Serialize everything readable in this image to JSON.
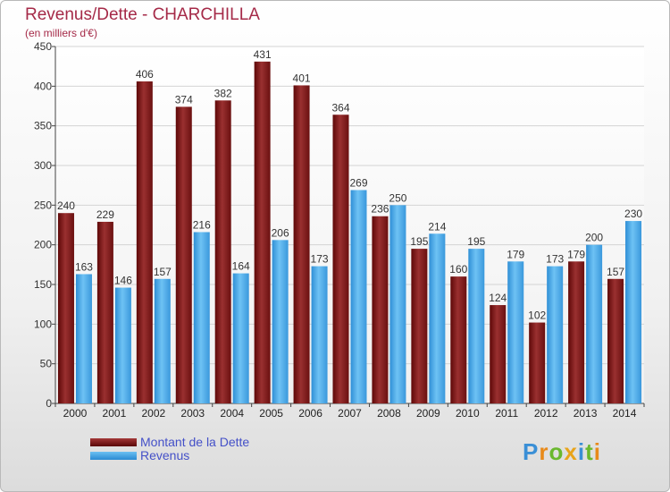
{
  "header": {
    "title": "Revenus/Dette - CHARCHILLA",
    "subtitle": "(en milliers d'€)"
  },
  "chart_data": {
    "type": "bar",
    "title": "Revenus/Dette - CHARCHILLA",
    "ylabel": "(en milliers d'€)",
    "xlabel": "",
    "categories": [
      "2000",
      "2001",
      "2002",
      "2003",
      "2004",
      "2005",
      "2006",
      "2007",
      "2008",
      "2009",
      "2010",
      "2011",
      "2012",
      "2013",
      "2014"
    ],
    "series": [
      {
        "name": "Montant de la Dette",
        "color": "#7a1a1a",
        "values": [
          240,
          229,
          406,
          374,
          382,
          431,
          401,
          364,
          236,
          195,
          160,
          124,
          102,
          179,
          157
        ]
      },
      {
        "name": "Revenus",
        "color": "#4aa8e8",
        "values": [
          163,
          146,
          157,
          216,
          164,
          206,
          173,
          269,
          250,
          214,
          195,
          179,
          173,
          200,
          230
        ]
      }
    ],
    "ylim": [
      0,
      450
    ],
    "yticks": [
      0,
      50,
      100,
      150,
      200,
      250,
      300,
      350,
      400,
      450
    ],
    "grid": true,
    "legend_position": "bottom-left"
  },
  "legend": {
    "debt_label": "Montant de la Dette",
    "revenue_label": "Revenus"
  },
  "logo": {
    "letters": [
      "P",
      "r",
      "o",
      "x",
      "i",
      "t",
      "i"
    ],
    "colors": [
      "#3a8fd6",
      "#e88a1a",
      "#6ab82e",
      "#e8a41a",
      "#3a8fd6",
      "#6ab82e",
      "#e88a1a"
    ]
  }
}
